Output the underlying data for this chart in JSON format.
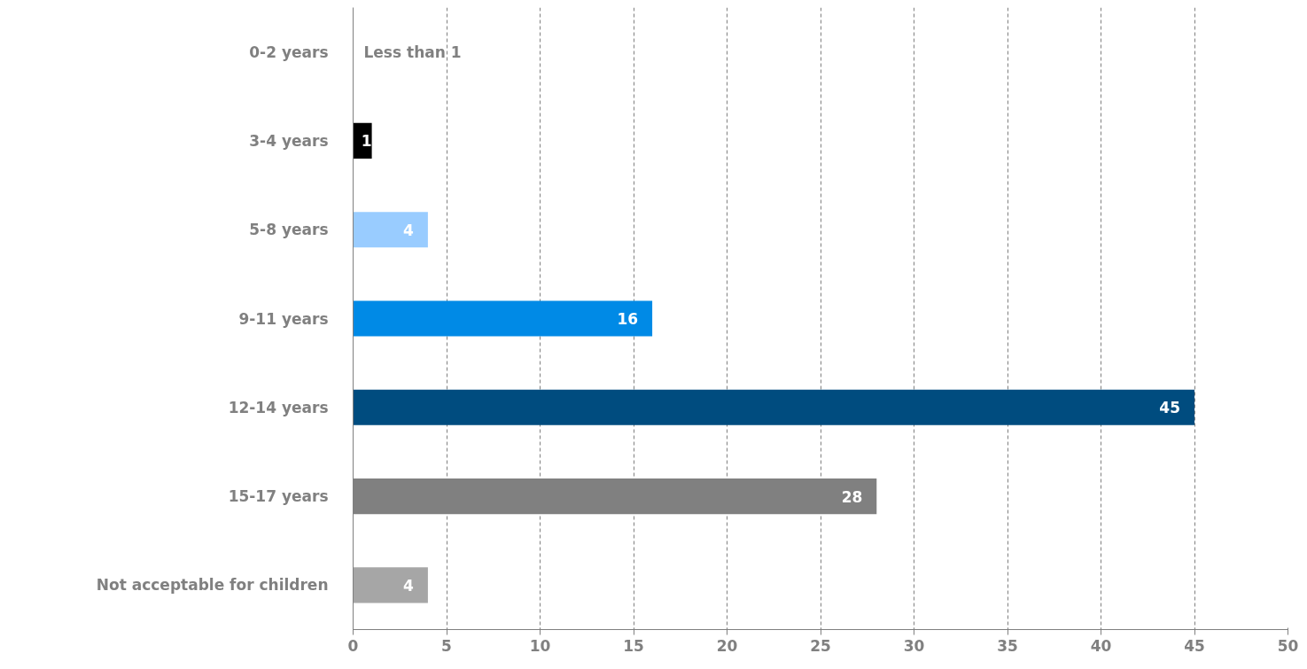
{
  "chart_data": {
    "type": "bar",
    "orientation": "horizontal",
    "categories": [
      "0-2 years",
      "3-4 years",
      "5-8 years",
      "9-11 years",
      "12-14 years",
      "15-17 years",
      "Not acceptable for children"
    ],
    "values": [
      null,
      1,
      4,
      16,
      45,
      28,
      4
    ],
    "colors": [
      "#000000",
      "#000000",
      "#99ccff",
      "#008ae6",
      "#004c7f",
      "#808080",
      "#a6a6a6"
    ],
    "value_labels": [
      "Less than 1",
      "1",
      "4",
      "16",
      "45",
      "28",
      "4"
    ],
    "xlim": [
      0,
      50
    ],
    "xticks": [
      0,
      5,
      10,
      15,
      20,
      25,
      30,
      35,
      40,
      45,
      50
    ],
    "grid": "x",
    "line_style": "dashed"
  }
}
